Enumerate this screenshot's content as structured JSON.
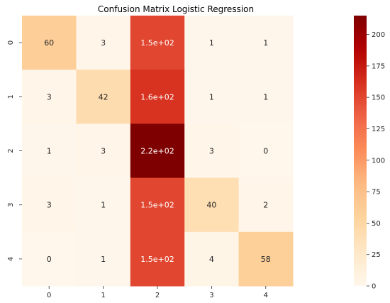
{
  "chart_data": {
    "type": "heatmap",
    "title": "Confusion Matrix Logistic Regression",
    "xlabel": "",
    "ylabel": "",
    "x_categories": [
      "0",
      "1",
      "2",
      "3",
      "4"
    ],
    "y_categories": [
      "0",
      "1",
      "2",
      "3",
      "4"
    ],
    "values": [
      [
        60,
        3,
        150,
        1,
        1
      ],
      [
        3,
        42,
        160,
        1,
        1
      ],
      [
        1,
        3,
        220,
        3,
        0
      ],
      [
        3,
        1,
        150,
        40,
        2
      ],
      [
        0,
        1,
        150,
        4,
        58
      ]
    ],
    "annotations": [
      [
        "60",
        "3",
        "1.5e+02",
        "1",
        "1"
      ],
      [
        "3",
        "42",
        "1.6e+02",
        "1",
        "1"
      ],
      [
        "1",
        "3",
        "2.2e+02",
        "3",
        "0"
      ],
      [
        "3",
        "1",
        "1.5e+02",
        "40",
        "2"
      ],
      [
        "0",
        "1",
        "1.5e+02",
        "4",
        "58"
      ]
    ],
    "colormap": "OrRd",
    "colorbar": {
      "range": [
        0,
        215
      ],
      "ticks": [
        0,
        25,
        50,
        75,
        100,
        125,
        150,
        175,
        200
      ],
      "tick_labels": [
        "0",
        "25",
        "50",
        "75",
        "100",
        "125",
        "150",
        "175",
        "200"
      ]
    },
    "grid": false
  }
}
